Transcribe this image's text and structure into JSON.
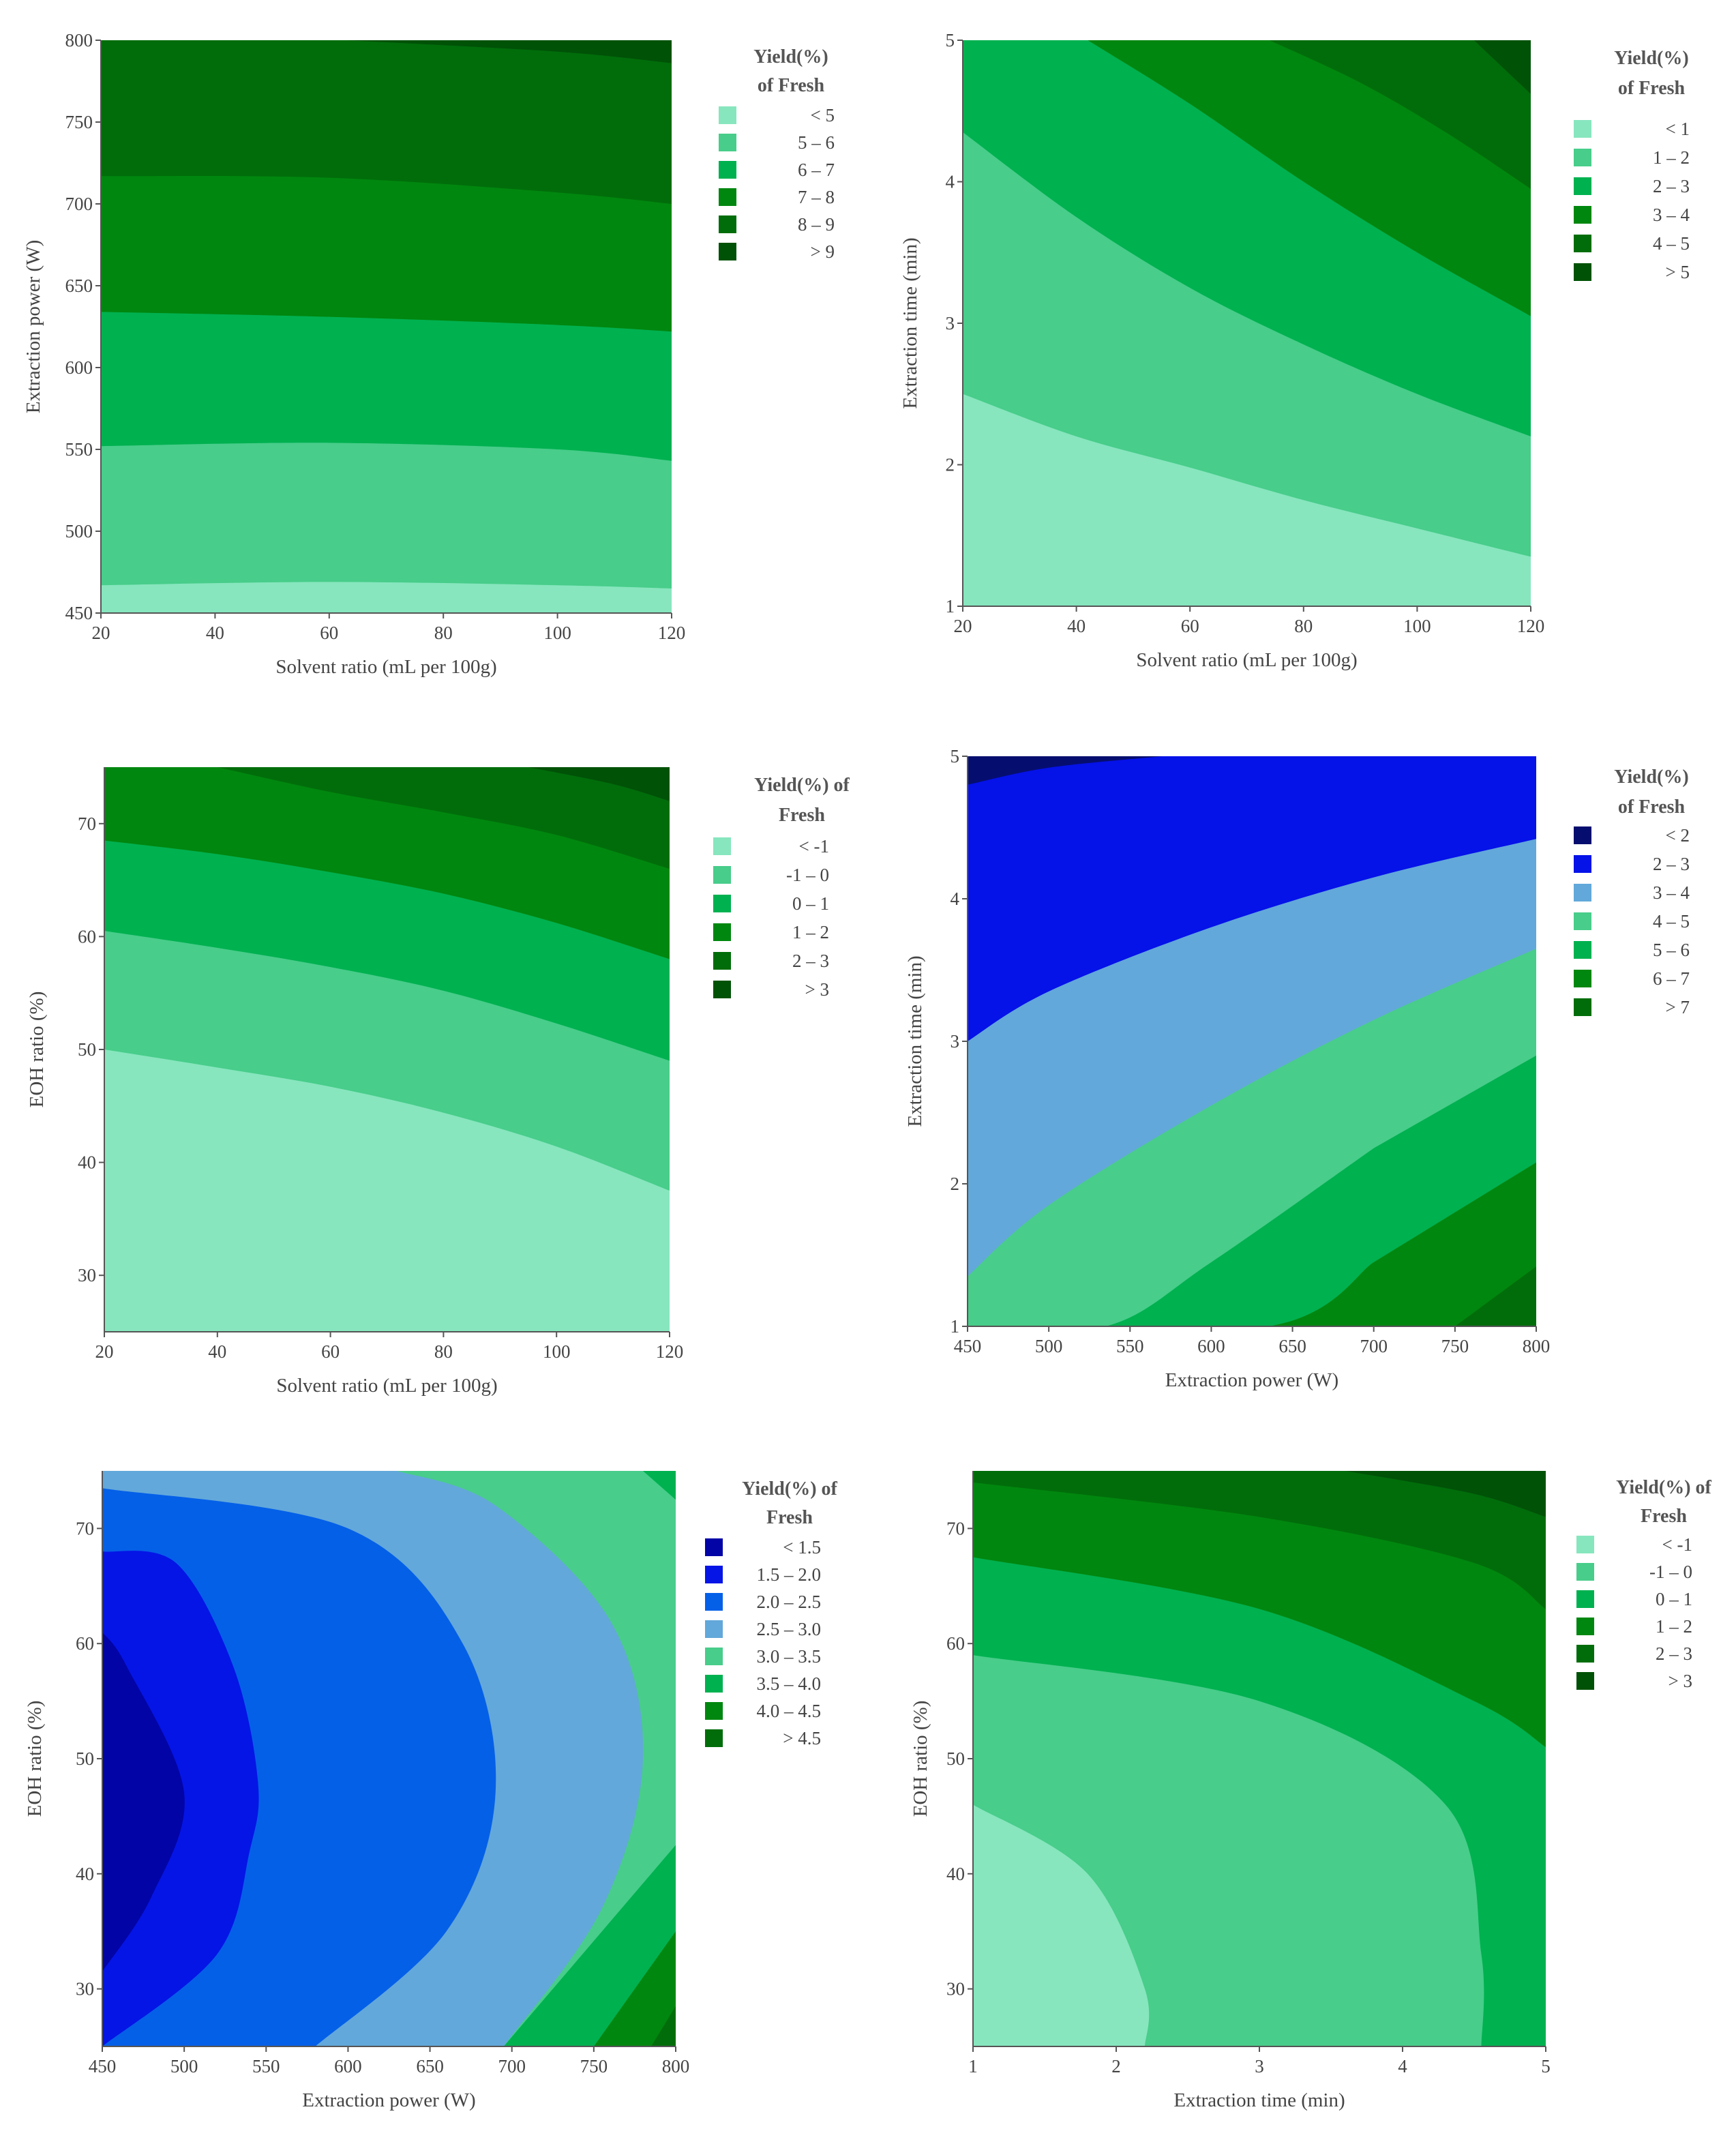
{
  "chart_data": [
    {
      "type": "contour",
      "xlabel": "Solvent ratio (mL per 100g)",
      "ylabel": "Extraction power (W)",
      "xlim": [
        20,
        120
      ],
      "ylim": [
        450,
        800
      ],
      "xticks": [
        "20",
        "40",
        "60",
        "80",
        "100",
        "120"
      ],
      "yticks": [
        "450",
        "500",
        "550",
        "600",
        "650",
        "700",
        "750",
        "800"
      ],
      "legend": {
        "title": [
          "Yield(%)",
          "of Fresh"
        ],
        "entries": [
          {
            "label": "< 5",
            "color": "#87E6BE"
          },
          {
            "label": "5 – 6",
            "color": "#48CD8A"
          },
          {
            "label": "6 – 7",
            "color": "#00B150"
          },
          {
            "label": "7 – 8",
            "color": "#00870F"
          },
          {
            "label": "8 – 9",
            "color": "#006D0A"
          },
          {
            "label": "> 9",
            "color": "#005207"
          }
        ]
      },
      "contours": [
        {
          "level": 5,
          "points": [
            [
              20,
              467
            ],
            [
              60,
              469
            ],
            [
              100,
              467
            ],
            [
              120,
              465
            ]
          ]
        },
        {
          "level": 6,
          "points": [
            [
              20,
              552
            ],
            [
              60,
              554
            ],
            [
              100,
              550
            ],
            [
              120,
              543
            ]
          ]
        },
        {
          "level": 7,
          "points": [
            [
              20,
              634
            ],
            [
              60,
              631
            ],
            [
              100,
              626
            ],
            [
              120,
              622
            ]
          ]
        },
        {
          "level": 8,
          "points": [
            [
              20,
              717
            ],
            [
              60,
              716
            ],
            [
              100,
              707
            ],
            [
              120,
              700
            ]
          ]
        },
        {
          "level": 9,
          "points": [
            [
              63,
              800
            ],
            [
              100,
              793
            ],
            [
              120,
              786
            ]
          ]
        }
      ]
    },
    {
      "type": "contour",
      "xlabel": "Solvent ratio (mL per 100g)",
      "ylabel": "Extraction time (min)",
      "xlim": [
        20,
        120
      ],
      "ylim": [
        1,
        5
      ],
      "xticks": [
        "20",
        "40",
        "60",
        "80",
        "100",
        "120"
      ],
      "yticks": [
        "1",
        "2",
        "3",
        "4",
        "5"
      ],
      "legend": {
        "title": [
          "Yield(%)",
          "of Fresh"
        ],
        "entries": [
          {
            "label": "< 1",
            "color": "#87E6BE"
          },
          {
            "label": "1 – 2",
            "color": "#48CD8A"
          },
          {
            "label": "2 – 3",
            "color": "#00B150"
          },
          {
            "label": "3 – 4",
            "color": "#00870F"
          },
          {
            "label": "4 – 5",
            "color": "#006D0A"
          },
          {
            "label": "> 5",
            "color": "#005207"
          }
        ]
      },
      "contours": [
        {
          "level": 1,
          "points": [
            [
              20,
              2.5
            ],
            [
              40,
              2.2
            ],
            [
              60,
              1.98
            ],
            [
              80,
              1.75
            ],
            [
              100,
              1.55
            ],
            [
              120,
              1.35
            ]
          ]
        },
        {
          "level": 2,
          "points": [
            [
              20,
              4.35
            ],
            [
              40,
              3.75
            ],
            [
              60,
              3.25
            ],
            [
              80,
              2.85
            ],
            [
              100,
              2.5
            ],
            [
              120,
              2.2
            ]
          ]
        },
        {
          "level": 3,
          "points": [
            [
              42,
              5.0
            ],
            [
              60,
              4.55
            ],
            [
              80,
              4.0
            ],
            [
              100,
              3.5
            ],
            [
              120,
              3.05
            ]
          ]
        },
        {
          "level": 4,
          "points": [
            [
              74,
              5.0
            ],
            [
              90,
              4.7
            ],
            [
              105,
              4.35
            ],
            [
              120,
              3.95
            ]
          ]
        },
        {
          "level": 5,
          "points": [
            [
              110,
              5.0
            ],
            [
              120,
              4.62
            ]
          ]
        }
      ]
    },
    {
      "type": "contour",
      "xlabel": "Solvent ratio (mL per 100g)",
      "ylabel": "EOH ratio (%)",
      "xlim": [
        20,
        120
      ],
      "ylim": [
        25,
        75
      ],
      "xticks": [
        "20",
        "40",
        "60",
        "80",
        "100",
        "120"
      ],
      "yticks": [
        "30",
        "40",
        "50",
        "60",
        "70"
      ],
      "legend": {
        "title": [
          "Yield(%) of",
          "Fresh"
        ],
        "entries": [
          {
            "label": "< -1",
            "color": "#87E6BE"
          },
          {
            "label": "-1 – 0",
            "color": "#48CD8A"
          },
          {
            "label": "0 – 1",
            "color": "#00B150"
          },
          {
            "label": "1 – 2",
            "color": "#00870F"
          },
          {
            "label": "2 – 3",
            "color": "#006D0A"
          },
          {
            "label": "> 3",
            "color": "#005207"
          }
        ]
      },
      "contours": [
        {
          "level": -1,
          "points": [
            [
              20,
              50
            ],
            [
              40,
              48.4
            ],
            [
              60,
              46.7
            ],
            [
              80,
              44.4
            ],
            [
              100,
              41.4
            ],
            [
              120,
              37.5
            ]
          ]
        },
        {
          "level": 0,
          "points": [
            [
              20,
              60.5
            ],
            [
              40,
              59
            ],
            [
              60,
              57.3
            ],
            [
              80,
              55.2
            ],
            [
              100,
              52.3
            ],
            [
              120,
              49
            ]
          ]
        },
        {
          "level": 1,
          "points": [
            [
              20,
              68.5
            ],
            [
              40,
              67.3
            ],
            [
              60,
              65.7
            ],
            [
              80,
              63.8
            ],
            [
              100,
              61.2
            ],
            [
              120,
              58
            ]
          ]
        },
        {
          "level": 2,
          "points": [
            [
              40,
              75
            ],
            [
              60,
              72.8
            ],
            [
              80,
              71
            ],
            [
              100,
              69
            ],
            [
              120,
              66
            ]
          ]
        },
        {
          "level": 3,
          "points": [
            [
              95,
              75
            ],
            [
              110,
              73.5
            ],
            [
              120,
              72
            ]
          ]
        }
      ]
    },
    {
      "type": "contour",
      "xlabel": "Extraction power (W)",
      "ylabel": "Extraction time (min)",
      "xlim": [
        450,
        800
      ],
      "ylim": [
        1,
        5
      ],
      "xticks": [
        "450",
        "500",
        "550",
        "600",
        "650",
        "700",
        "750",
        "800"
      ],
      "yticks": [
        "1",
        "2",
        "3",
        "4",
        "5"
      ],
      "legend": {
        "title": [
          "Yield(%)",
          "of Fresh"
        ],
        "entries": [
          {
            "label": "< 2",
            "color": "#050E6E"
          },
          {
            "label": "2 – 3",
            "color": "#0512E8"
          },
          {
            "label": "3 – 4",
            "color": "#62A8DA"
          },
          {
            "label": "4 – 5",
            "color": "#48CD8A"
          },
          {
            "label": "5 – 6",
            "color": "#00B150"
          },
          {
            "label": "6 – 7",
            "color": "#00870F"
          },
          {
            "label": "> 7",
            "color": "#006D0A"
          }
        ]
      },
      "contours": [
        {
          "level": 2,
          "points": [
            [
              450,
              4.8
            ],
            [
              500,
              4.92
            ],
            [
              570,
              5.0
            ]
          ]
        },
        {
          "level": 3,
          "points": [
            [
              450,
              3.0
            ],
            [
              500,
              3.35
            ],
            [
              600,
              3.8
            ],
            [
              700,
              4.15
            ],
            [
              800,
              4.42
            ]
          ]
        },
        {
          "level": 4,
          "points": [
            [
              450,
              1.35
            ],
            [
              500,
              1.85
            ],
            [
              600,
              2.55
            ],
            [
              700,
              3.15
            ],
            [
              800,
              3.65
            ]
          ]
        },
        {
          "level": 5,
          "points": [
            [
              535,
              1.0
            ],
            [
              600,
              1.45
            ],
            [
              700,
              2.25
            ],
            [
              800,
              2.9
            ]
          ]
        },
        {
          "level": 6,
          "points": [
            [
              635,
              1.0
            ],
            [
              700,
              1.45
            ],
            [
              800,
              2.15
            ]
          ]
        },
        {
          "level": 7,
          "points": [
            [
              750,
              1.0
            ],
            [
              800,
              1.42
            ]
          ]
        }
      ]
    },
    {
      "type": "contour",
      "xlabel": "Extraction power (W)",
      "ylabel": "EOH ratio (%)",
      "xlim": [
        450,
        800
      ],
      "ylim": [
        25,
        75
      ],
      "xticks": [
        "450",
        "500",
        "550",
        "600",
        "650",
        "700",
        "750",
        "800"
      ],
      "yticks": [
        "30",
        "40",
        "50",
        "60",
        "70"
      ],
      "legend": {
        "title": [
          "Yield(%) of",
          "Fresh"
        ],
        "entries": [
          {
            "label": "< 1.5",
            "color": "#0304A6"
          },
          {
            "label": "1.5 – 2.0",
            "color": "#0515E6"
          },
          {
            "label": "2.0 – 2.5",
            "color": "#0560E8"
          },
          {
            "label": "2.5 – 3.0",
            "color": "#62A8DA"
          },
          {
            "label": "3.0 – 3.5",
            "color": "#48CD8A"
          },
          {
            "label": "3.5 – 4.0",
            "color": "#00B150"
          },
          {
            "label": "4.0 – 4.5",
            "color": "#00870F"
          },
          {
            "label": "> 4.5",
            "color": "#006D0A"
          }
        ]
      },
      "contours": [
        {
          "level": 1.5,
          "points": [
            [
              450,
              31.5
            ],
            [
              480,
              38
            ],
            [
              500,
              47
            ],
            [
              465,
              58
            ],
            [
              450,
              61
            ]
          ]
        },
        {
          "level": 2.0,
          "points": [
            [
              450,
              25
            ],
            [
              520,
              33
            ],
            [
              540,
              42
            ],
            [
              545,
              48
            ],
            [
              530,
              58
            ],
            [
              495,
              67
            ],
            [
              450,
              68
            ]
          ]
        },
        {
          "level": 2.5,
          "points": [
            [
              580,
              25
            ],
            [
              660,
              35
            ],
            [
              690,
              47
            ],
            [
              670,
              60
            ],
            [
              600,
              70
            ],
            [
              450,
              73.5
            ]
          ]
        },
        {
          "level": 3.0,
          "points": [
            [
              695,
              25
            ],
            [
              755,
              37
            ],
            [
              780,
              50
            ],
            [
              760,
              62
            ],
            [
              690,
              72
            ],
            [
              630,
              75
            ]
          ]
        },
        {
          "level": 3.5,
          "points": [
            [
              800,
              42.5
            ]
          ]
        },
        {
          "level": 4.0,
          "points": [
            [
              750,
              25
            ],
            [
              800,
              35
            ]
          ]
        },
        {
          "level": 4.5,
          "points": [
            [
              785,
              25
            ],
            [
              800,
              28.5
            ]
          ]
        }
      ]
    },
    {
      "type": "contour",
      "xlabel": "Extraction time (min)",
      "ylabel": "EOH ratio (%)",
      "xlim": [
        1,
        5
      ],
      "ylim": [
        25,
        75
      ],
      "xticks": [
        "1",
        "2",
        "3",
        "4",
        "5"
      ],
      "yticks": [
        "30",
        "40",
        "50",
        "60",
        "70"
      ],
      "legend": {
        "title": [
          "Yield(%) of",
          "Fresh"
        ],
        "entries": [
          {
            "label": "< -1",
            "color": "#87E6BE"
          },
          {
            "label": "-1 – 0",
            "color": "#48CD8A"
          },
          {
            "label": "0 – 1",
            "color": "#00B150"
          },
          {
            "label": "1 – 2",
            "color": "#00870F"
          },
          {
            "label": "2 – 3",
            "color": "#006D0A"
          },
          {
            "label": "> 3",
            "color": "#005207"
          }
        ]
      },
      "contours": [
        {
          "level": -1,
          "points": [
            [
              1,
              46
            ],
            [
              1.8,
              40
            ],
            [
              2.2,
              30
            ],
            [
              2.2,
              25
            ]
          ]
        },
        {
          "level": 0,
          "points": [
            [
              1,
              59
            ],
            [
              3,
              55
            ],
            [
              4.3,
              46
            ],
            [
              4.55,
              33
            ],
            [
              4.55,
              25
            ]
          ]
        },
        {
          "level": 1,
          "points": [
            [
              1,
              67.5
            ],
            [
              3,
              63
            ],
            [
              4.5,
              55
            ],
            [
              5,
              51
            ]
          ]
        },
        {
          "level": 2,
          "points": [
            [
              1,
              74
            ],
            [
              3,
              71
            ],
            [
              4.5,
              67
            ],
            [
              5,
              63
            ]
          ]
        },
        {
          "level": 3,
          "points": [
            [
              3.6,
              75
            ],
            [
              4.5,
              73
            ],
            [
              5,
              71
            ]
          ]
        }
      ]
    }
  ]
}
